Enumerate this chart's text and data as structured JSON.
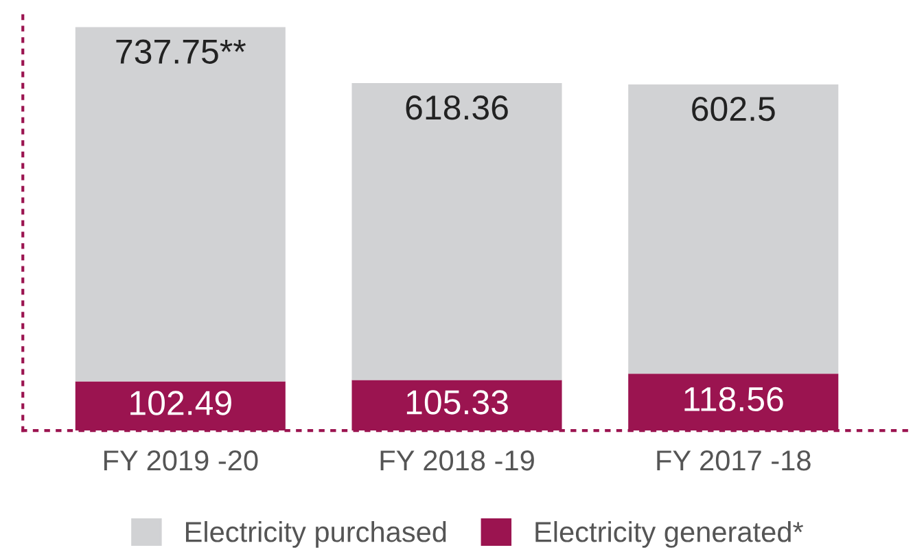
{
  "chart_data": {
    "type": "bar",
    "stacked": true,
    "categories": [
      "FY 2019 -20",
      "FY 2018 -19",
      "FY 2017 -18"
    ],
    "series": [
      {
        "name": "Electricity generated*",
        "color": "#9b1450",
        "values": [
          102.49,
          105.33,
          118.56
        ],
        "value_labels": [
          "102.49",
          "105.33",
          "118.56"
        ]
      },
      {
        "name": "Electricity purchased",
        "color": "#d1d2d4",
        "values": [
          737.75,
          618.36,
          602.5
        ],
        "value_labels": [
          "737.75**",
          "618.36",
          "602.5"
        ]
      }
    ],
    "legend": "bottom",
    "grid": false
  }
}
